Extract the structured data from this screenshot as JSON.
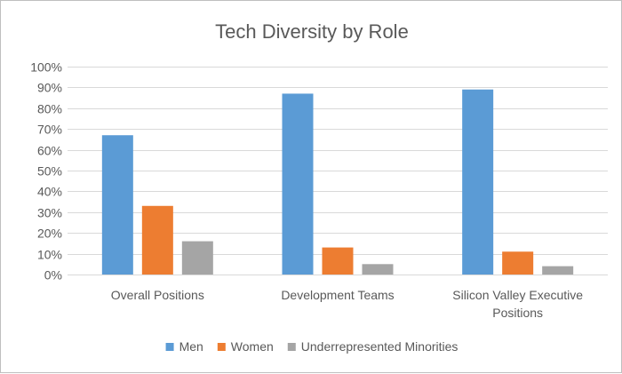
{
  "chart_data": {
    "type": "bar",
    "title": "Tech Diversity by Role",
    "categories": [
      [
        "Overall Positions"
      ],
      [
        "Development Teams"
      ],
      [
        "Silicon Valley Executive",
        "Positions"
      ]
    ],
    "series": [
      {
        "name": "Men",
        "color": "#5b9bd5",
        "values": [
          67,
          87,
          89
        ]
      },
      {
        "name": "Women",
        "color": "#ed7d31",
        "values": [
          33,
          13,
          11
        ]
      },
      {
        "name": "Underrepresented Minorities",
        "color": "#a5a5a5",
        "values": [
          16,
          5,
          4
        ]
      }
    ],
    "ylim": [
      0,
      100
    ],
    "yticks": [
      "0%",
      "10%",
      "20%",
      "30%",
      "40%",
      "50%",
      "60%",
      "70%",
      "80%",
      "90%",
      "100%"
    ],
    "ytick_values": [
      0,
      10,
      20,
      30,
      40,
      50,
      60,
      70,
      80,
      90,
      100
    ],
    "grid": true,
    "legend_position": "bottom",
    "xlabel": "",
    "ylabel": ""
  }
}
